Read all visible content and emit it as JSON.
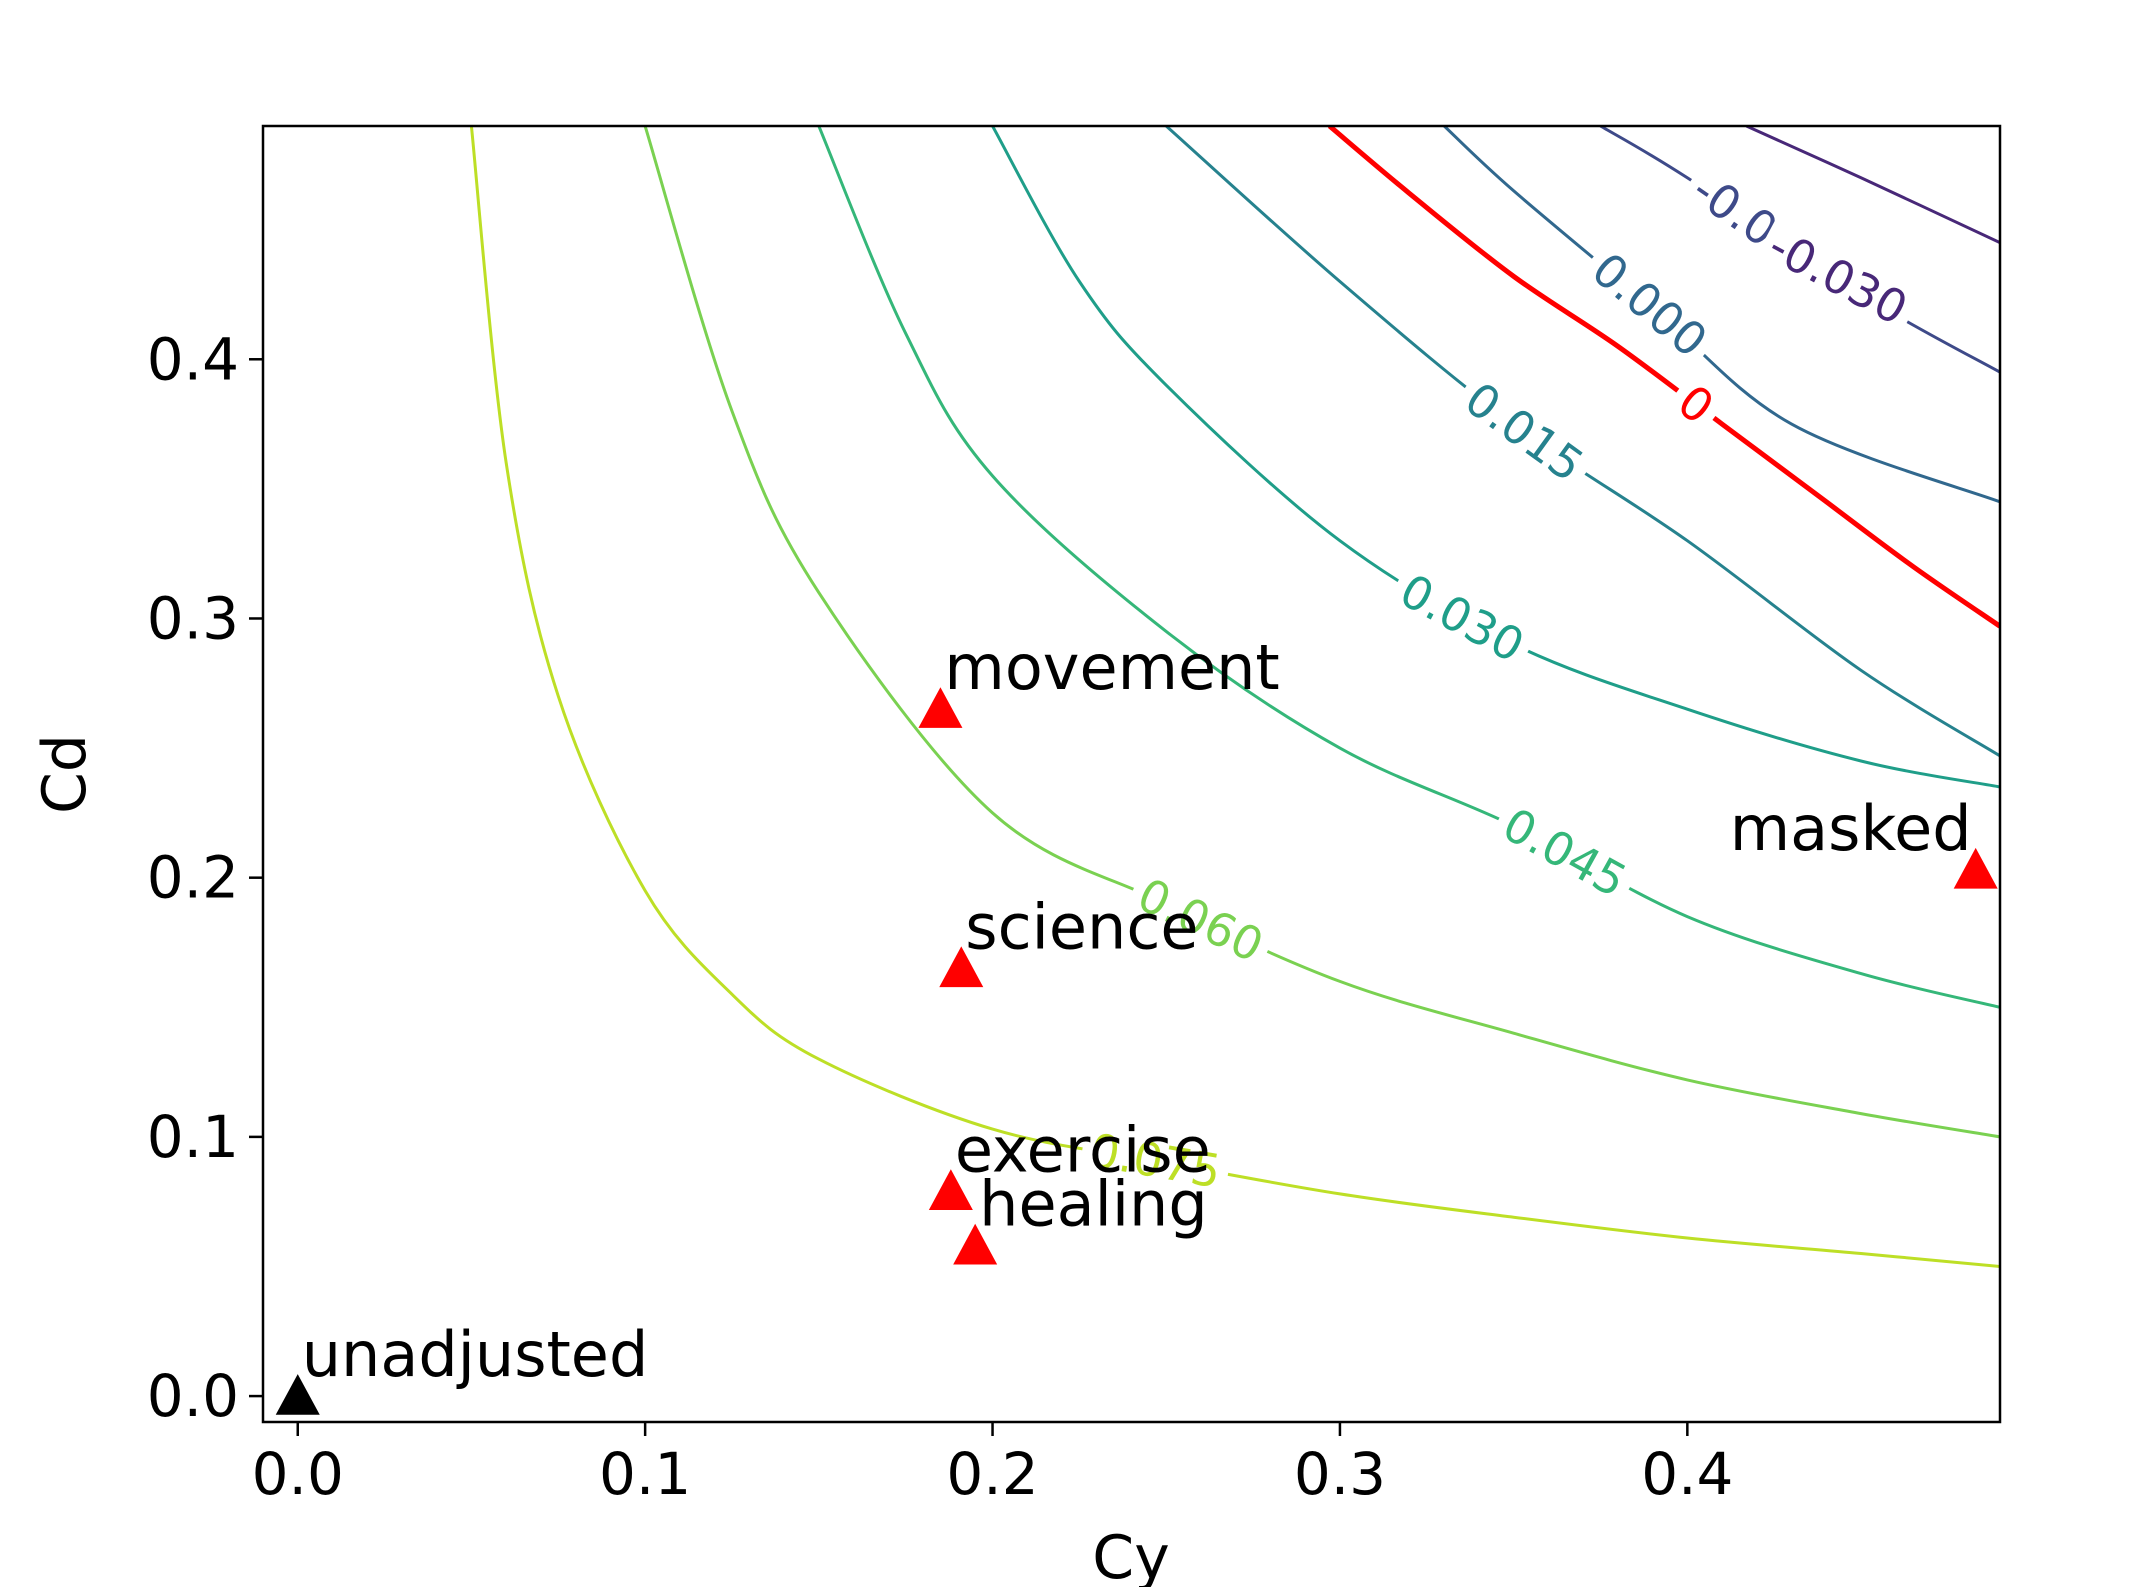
{
  "chart_data": {
    "type": "contour",
    "xlabel": "Cy",
    "ylabel": "Cd",
    "xlim": [
      -0.01,
      0.49
    ],
    "ylim": [
      -0.01,
      0.49
    ],
    "x_ticks": [
      {
        "value": 0.0,
        "label": "0.0"
      },
      {
        "value": 0.1,
        "label": "0.1"
      },
      {
        "value": 0.2,
        "label": "0.2"
      },
      {
        "value": 0.3,
        "label": "0.3"
      },
      {
        "value": 0.4,
        "label": "0.4"
      }
    ],
    "y_ticks": [
      {
        "value": 0.0,
        "label": "0.0"
      },
      {
        "value": 0.1,
        "label": "0.1"
      },
      {
        "value": 0.2,
        "label": "0.2"
      },
      {
        "value": 0.3,
        "label": "0.3"
      },
      {
        "value": 0.4,
        "label": "0.4"
      }
    ],
    "grid": false,
    "contours": [
      {
        "level": 0.075,
        "label": "0.075",
        "color": "#bddf26",
        "points": [
          [
            0.05,
            0.49
          ],
          [
            0.06,
            0.36
          ],
          [
            0.075,
            0.27
          ],
          [
            0.1,
            0.195
          ],
          [
            0.125,
            0.155
          ],
          [
            0.15,
            0.13
          ],
          [
            0.2,
            0.103
          ],
          [
            0.25,
            0.09
          ],
          [
            0.3,
            0.078
          ],
          [
            0.35,
            0.069
          ],
          [
            0.4,
            0.061
          ],
          [
            0.45,
            0.055
          ],
          [
            0.49,
            0.05
          ]
        ]
      },
      {
        "level": 0.06,
        "label": "0.060",
        "color": "#7ad151",
        "points": [
          [
            0.1,
            0.49
          ],
          [
            0.125,
            0.38
          ],
          [
            0.15,
            0.31
          ],
          [
            0.2,
            0.225
          ],
          [
            0.25,
            0.19
          ],
          [
            0.3,
            0.16
          ],
          [
            0.35,
            0.14
          ],
          [
            0.4,
            0.122
          ],
          [
            0.45,
            0.109
          ],
          [
            0.49,
            0.1
          ]
        ]
      },
      {
        "level": 0.045,
        "label": "0.045",
        "color": "#35b779",
        "points": [
          [
            0.15,
            0.49
          ],
          [
            0.175,
            0.41
          ],
          [
            0.2,
            0.355
          ],
          [
            0.25,
            0.295
          ],
          [
            0.3,
            0.25
          ],
          [
            0.35,
            0.22
          ],
          [
            0.4,
            0.185
          ],
          [
            0.45,
            0.163
          ],
          [
            0.49,
            0.15
          ]
        ]
      },
      {
        "level": 0.03,
        "label": "0.030",
        "color": "#1f9e89",
        "points": [
          [
            0.2,
            0.49
          ],
          [
            0.225,
            0.43
          ],
          [
            0.25,
            0.39
          ],
          [
            0.3,
            0.33
          ],
          [
            0.35,
            0.29
          ],
          [
            0.4,
            0.265
          ],
          [
            0.45,
            0.245
          ],
          [
            0.49,
            0.235
          ]
        ]
      },
      {
        "level": 0.015,
        "label": "0.015",
        "color": "#26828e",
        "points": [
          [
            0.25,
            0.49
          ],
          [
            0.3,
            0.43
          ],
          [
            0.35,
            0.375
          ],
          [
            0.4,
            0.33
          ],
          [
            0.45,
            0.28
          ],
          [
            0.49,
            0.247
          ]
        ]
      },
      {
        "level": 0.0,
        "label": "0.000",
        "color": "#31688e",
        "points": [
          [
            0.33,
            0.49
          ],
          [
            0.35,
            0.465
          ],
          [
            0.39,
            0.42
          ],
          [
            0.43,
            0.375
          ],
          [
            0.49,
            0.345
          ]
        ]
      },
      {
        "level": -0.015,
        "label": "-0.015",
        "color": "#3e4a89",
        "points": [
          [
            0.375,
            0.49
          ],
          [
            0.4,
            0.47
          ],
          [
            0.45,
            0.425
          ],
          [
            0.49,
            0.395
          ]
        ]
      },
      {
        "level": -0.03,
        "label": "-0.030",
        "color": "#482878",
        "points": [
          [
            0.417,
            0.49
          ],
          [
            0.45,
            0.47
          ],
          [
            0.49,
            0.445
          ]
        ]
      }
    ],
    "threshold_contour": {
      "label": "0",
      "color": "#ff0000",
      "points": [
        [
          0.297,
          0.49
        ],
        [
          0.32,
          0.464
        ],
        [
          0.35,
          0.432
        ],
        [
          0.38,
          0.405
        ],
        [
          0.41,
          0.375
        ],
        [
          0.44,
          0.345
        ],
        [
          0.465,
          0.32
        ],
        [
          0.49,
          0.297
        ]
      ]
    },
    "points": [
      {
        "label": "unadjusted",
        "x": 0.0,
        "y": 0.0,
        "color": "#000000"
      },
      {
        "label": "movement",
        "x": 0.185,
        "y": 0.265,
        "color": "#ff0000"
      },
      {
        "label": "science",
        "x": 0.191,
        "y": 0.165,
        "color": "#ff0000"
      },
      {
        "label": "exercise",
        "x": 0.188,
        "y": 0.079,
        "color": "#ff0000"
      },
      {
        "label": "healing",
        "x": 0.195,
        "y": 0.058,
        "color": "#ff0000"
      },
      {
        "label": "masked",
        "x": 0.483,
        "y": 0.203,
        "color": "#ff0000"
      }
    ]
  }
}
